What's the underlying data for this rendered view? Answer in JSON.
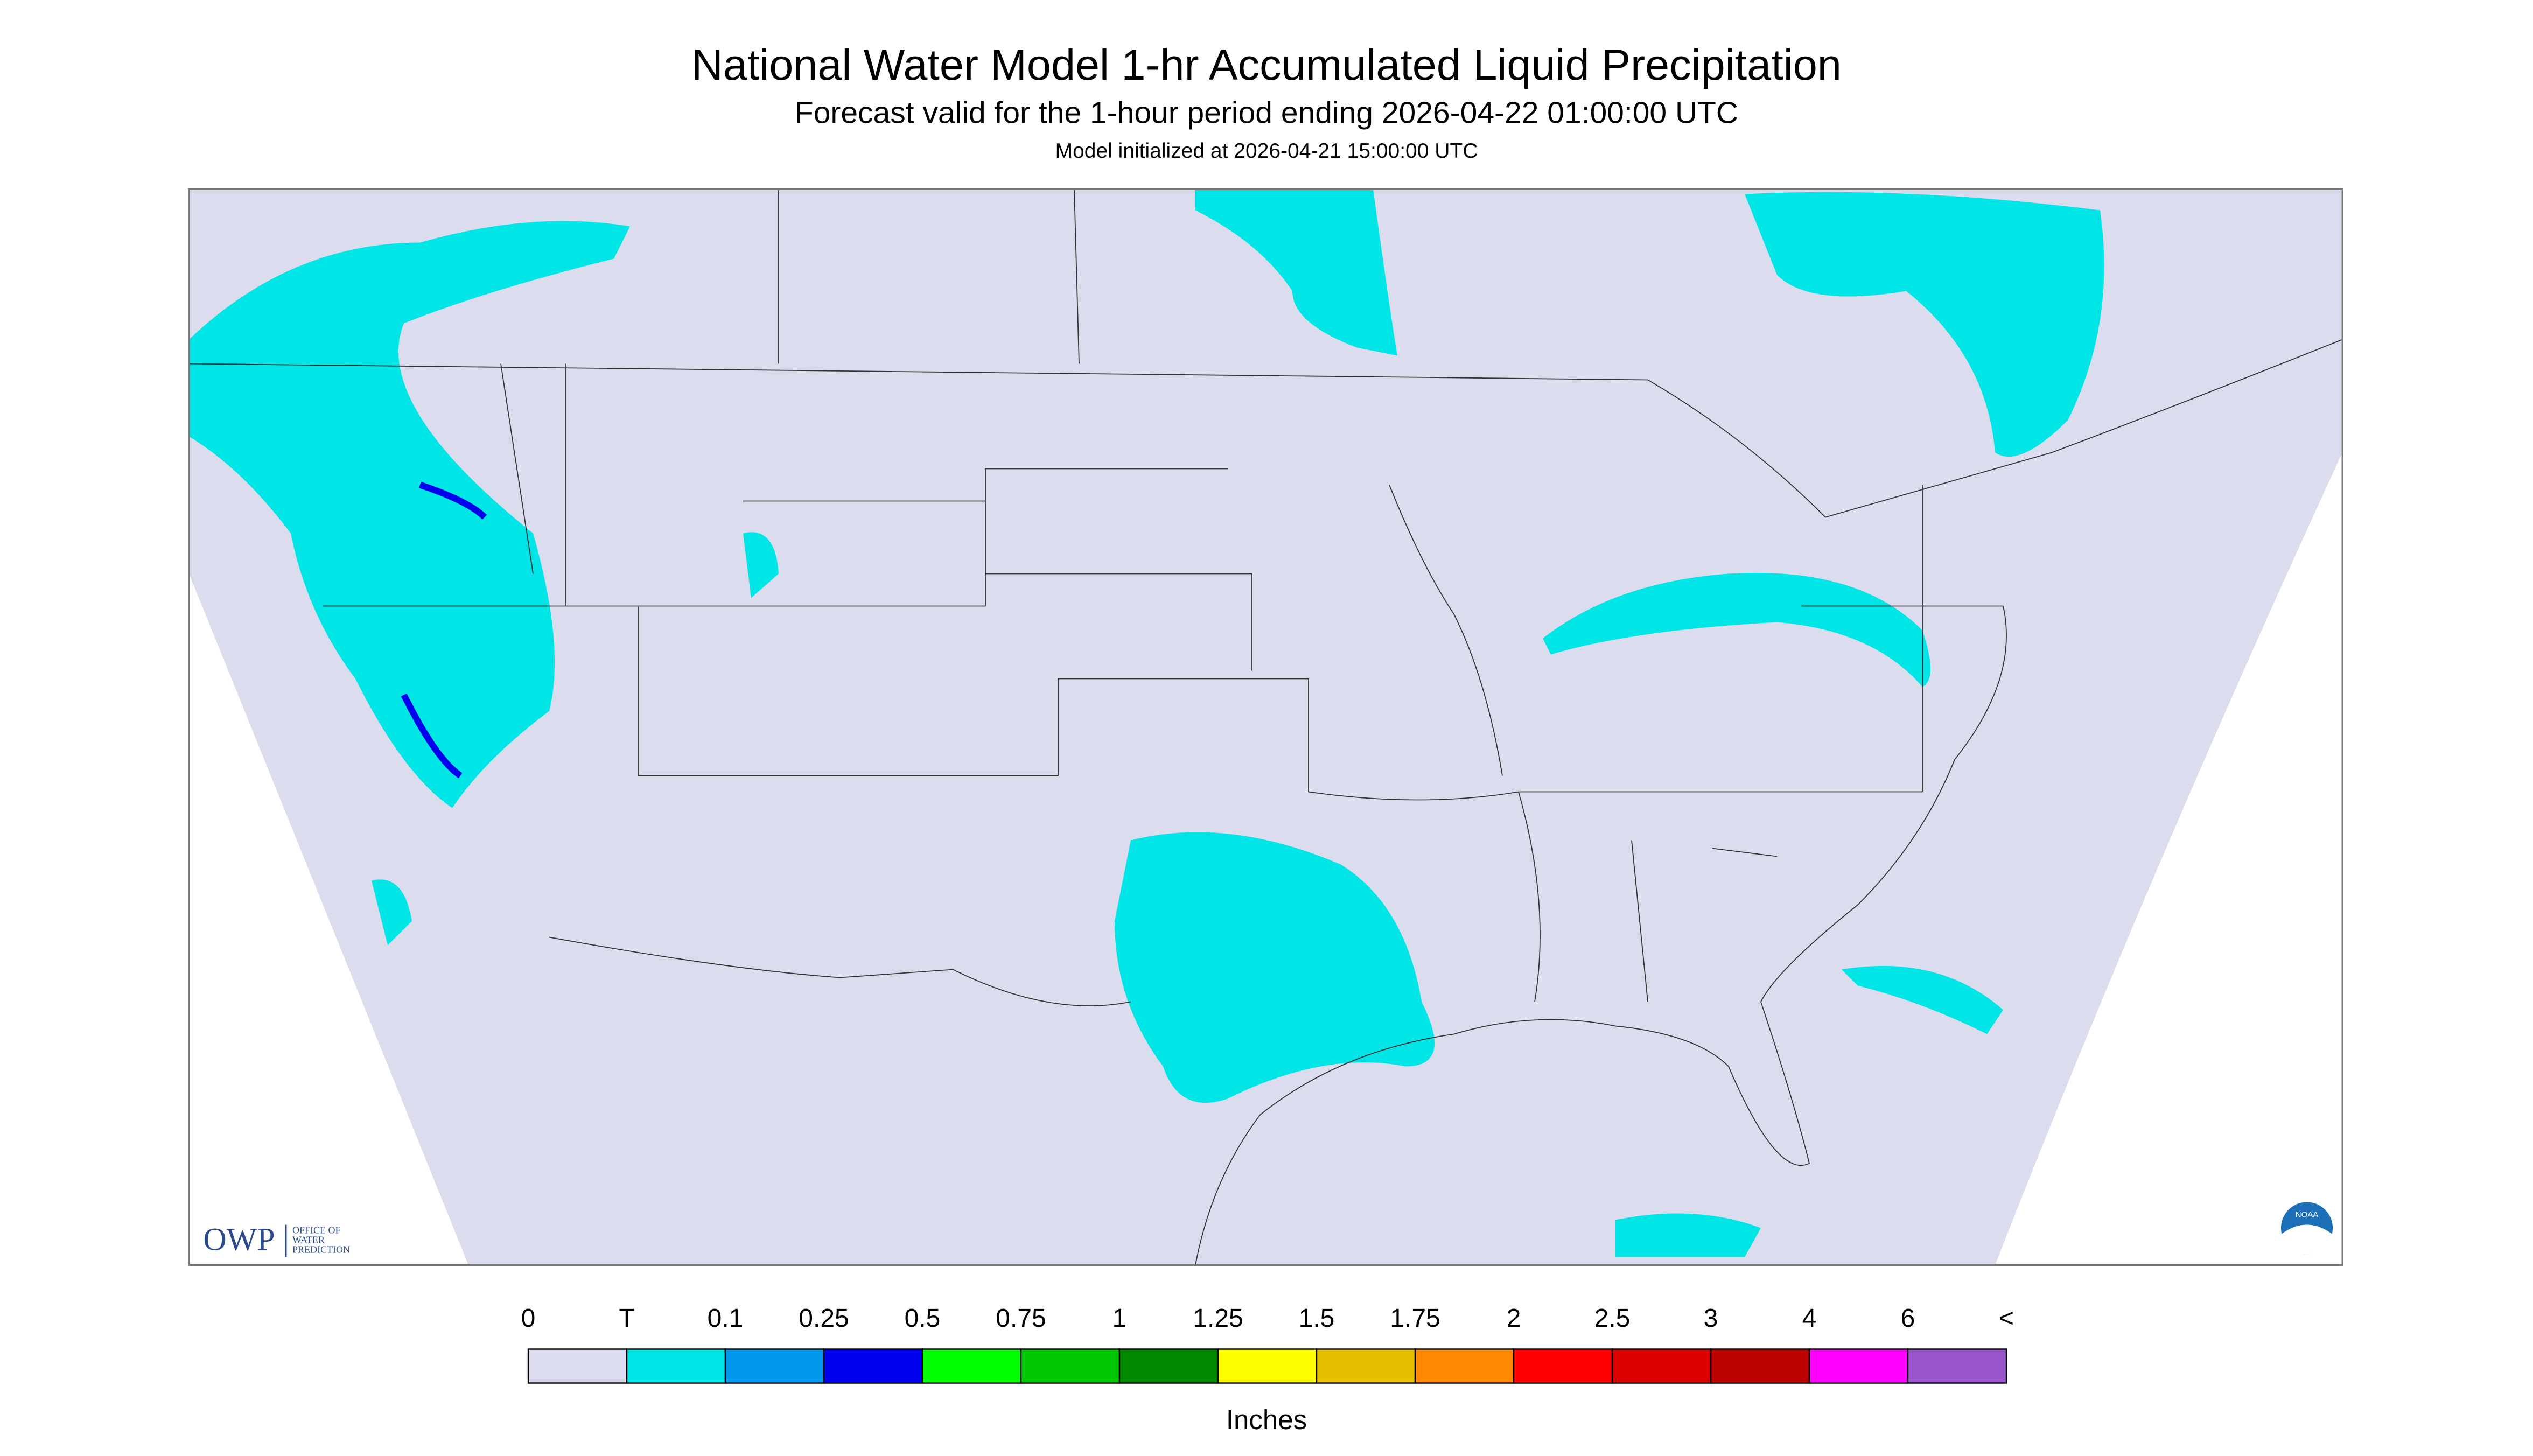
{
  "header": {
    "title": "National Water Model 1-hr Accumulated Liquid Precipitation",
    "subtitle": "Forecast valid for the 1-hour period ending 2026-04-22 01:00:00 UTC",
    "init": "Model initialized at 2026-04-21 15:00:00 UTC"
  },
  "legend": {
    "labels": [
      "0",
      "T",
      "0.1",
      "0.25",
      "0.5",
      "0.75",
      "1",
      "1.25",
      "1.5",
      "1.75",
      "2",
      "2.5",
      "3",
      "4",
      "6",
      "<"
    ],
    "colors": [
      "#dcdcef",
      "#00e5e5",
      "#0099ee",
      "#0000ee",
      "#00ff00",
      "#00c800",
      "#008800",
      "#ffff00",
      "#e5c000",
      "#ff8800",
      "#ff0000",
      "#dd0000",
      "#bb0000",
      "#ff00ff",
      "#9955cc"
    ],
    "units": "Inches"
  },
  "logos": {
    "owp": "OWP",
    "owp_text": [
      "OFFICE OF",
      "WATER",
      "PREDICTION"
    ],
    "noaa": "NOAA"
  }
}
